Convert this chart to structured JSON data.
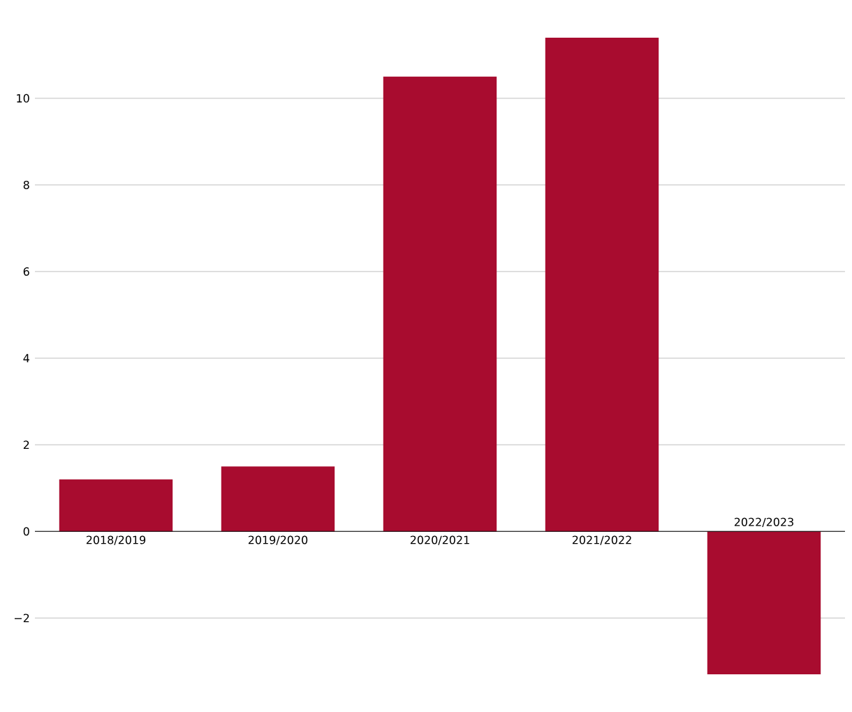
{
  "chart_data": {
    "type": "bar",
    "categories": [
      "2018/2019",
      "2019/2020",
      "2020/2021",
      "2021/2022",
      "2022/2023"
    ],
    "values": [
      1.2,
      1.5,
      10.5,
      11.4,
      -3.3
    ],
    "color": "#a80c2f",
    "ylim": [
      -3.3,
      11.4
    ],
    "yticks": [
      {
        "value": -2,
        "label": "−2"
      },
      0,
      2,
      4,
      6,
      8,
      10
    ],
    "grid": "y"
  }
}
